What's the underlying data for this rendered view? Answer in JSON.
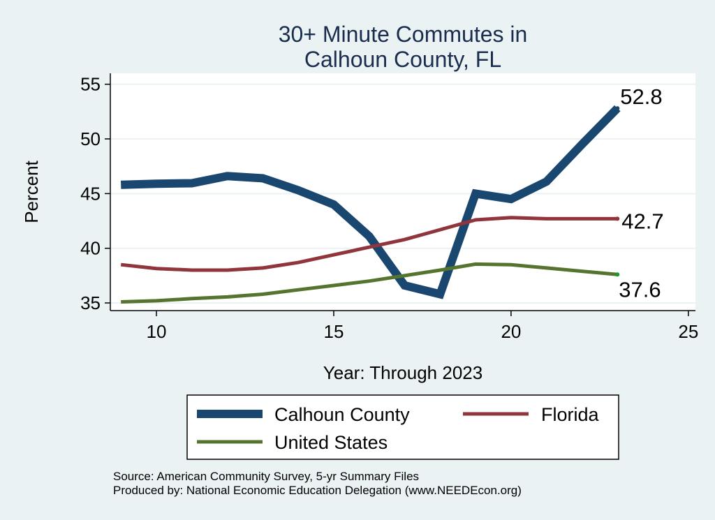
{
  "chart_data": {
    "type": "line",
    "title": [
      "30+ Minute Commutes in",
      "Calhoun County, FL"
    ],
    "xlabel": "Year: Through 2023",
    "ylabel": "Percent",
    "xlim": [
      8.7,
      25.2
    ],
    "ylim": [
      34.3,
      56.0
    ],
    "xticks": [
      10,
      15,
      20,
      25
    ],
    "yticks": [
      35,
      40,
      45,
      50,
      55
    ],
    "grid": true,
    "legend_position": "bottom",
    "series": [
      {
        "name": "Calhoun County",
        "color": "#1a476f",
        "x": [
          9,
          10,
          11,
          12,
          13,
          14,
          15,
          16,
          17,
          18,
          19,
          20,
          21,
          22,
          23
        ],
        "y": [
          45.8,
          45.9,
          45.95,
          46.6,
          46.4,
          45.3,
          44.0,
          41.1,
          36.6,
          35.8,
          45.0,
          44.5,
          46.1,
          49.5,
          52.8
        ],
        "end_label": "52.8"
      },
      {
        "name": "Florida",
        "color": "#90353b",
        "x": [
          9,
          10,
          11,
          12,
          13,
          14,
          15,
          16,
          17,
          18,
          19,
          20,
          21,
          22,
          23
        ],
        "y": [
          38.5,
          38.15,
          38.0,
          38.0,
          38.2,
          38.7,
          39.4,
          40.1,
          40.8,
          41.7,
          42.6,
          42.8,
          42.7,
          42.7,
          42.7
        ],
        "end_label": "42.7"
      },
      {
        "name": "United States",
        "color": "#55752f",
        "x": [
          9,
          10,
          11,
          12,
          13,
          14,
          15,
          16,
          17,
          18,
          19,
          20,
          21,
          22,
          23
        ],
        "y": [
          35.1,
          35.2,
          35.4,
          35.55,
          35.8,
          36.2,
          36.6,
          37.0,
          37.5,
          38.0,
          38.55,
          38.5,
          38.2,
          37.9,
          37.6
        ],
        "end_label": "37.6"
      }
    ],
    "notes": [
      "Source: American Community Survey, 5-yr Summary Files",
      "Produced by: National Economic Education Delegation (www.NEEDEcon.org)"
    ]
  }
}
